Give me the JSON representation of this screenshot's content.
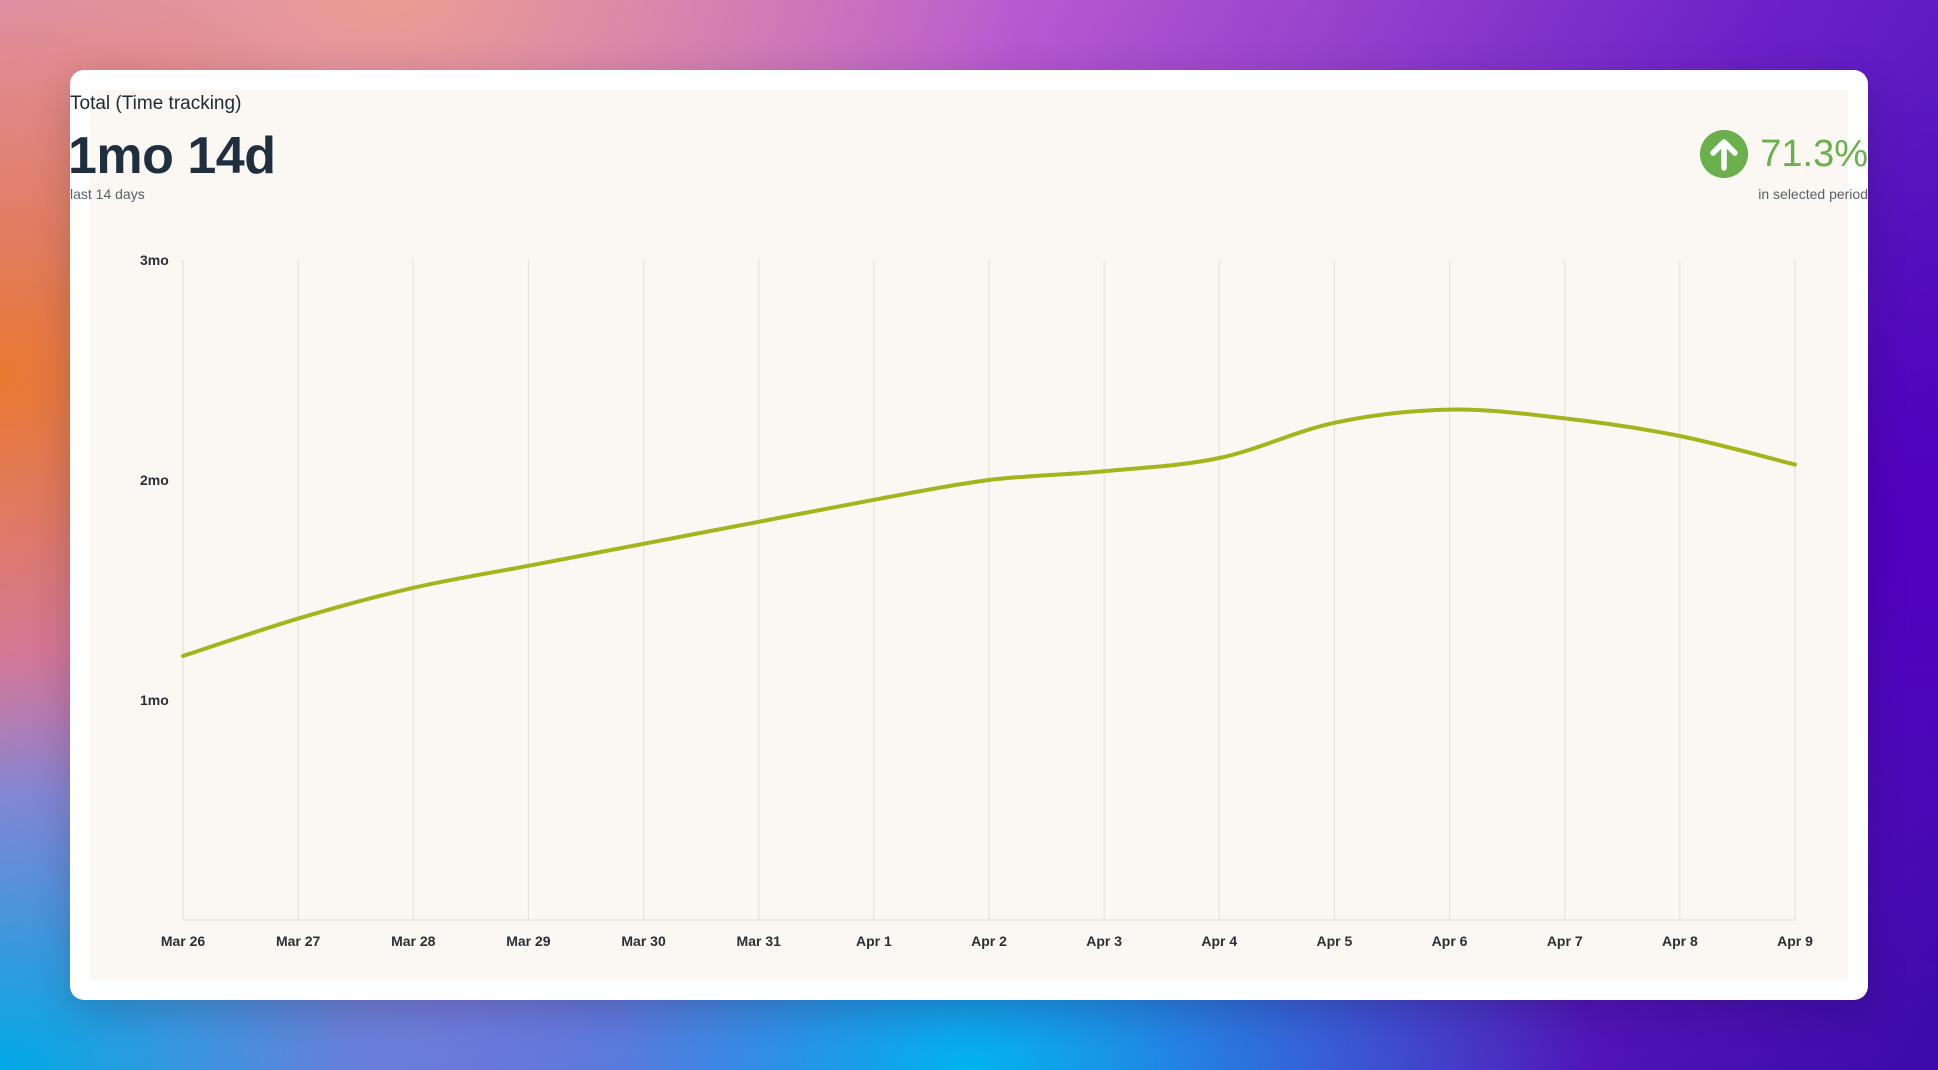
{
  "header": {
    "title": "Total (Time tracking)",
    "value": "1mo 14d",
    "subtitle": "last 14 days"
  },
  "change": {
    "percent": "71.3%",
    "caption": "in selected period",
    "direction_icon": "arrow-up-icon",
    "color": "#6ab04c"
  },
  "chart_data": {
    "type": "line",
    "title": "",
    "xlabel": "",
    "ylabel": "",
    "x": [
      "Mar 26",
      "Mar 27",
      "Mar 28",
      "Mar 29",
      "Mar 30",
      "Mar 31",
      "Apr 1",
      "Apr 2",
      "Apr 3",
      "Apr 4",
      "Apr 5",
      "Apr 6",
      "Apr 7",
      "Apr 8",
      "Apr 9"
    ],
    "y_unit": "months",
    "y_ticks": [
      {
        "value": 1,
        "label": "1mo"
      },
      {
        "value": 2,
        "label": "2mo"
      },
      {
        "value": 3,
        "label": "3mo"
      }
    ],
    "ylim": [
      0,
      3
    ],
    "series": [
      {
        "values": [
          1.2,
          1.37,
          1.51,
          1.61,
          1.71,
          1.81,
          1.91,
          2.0,
          2.04,
          2.1,
          2.26,
          2.32,
          2.28,
          2.2,
          2.07
        ],
        "color": "#a4b41c"
      }
    ],
    "grid": "vertical",
    "legend": "none"
  },
  "colors": {
    "panel_bg": "#fbf7f3",
    "grid": "#e2dedb",
    "axis_text": "#2a2f36"
  }
}
